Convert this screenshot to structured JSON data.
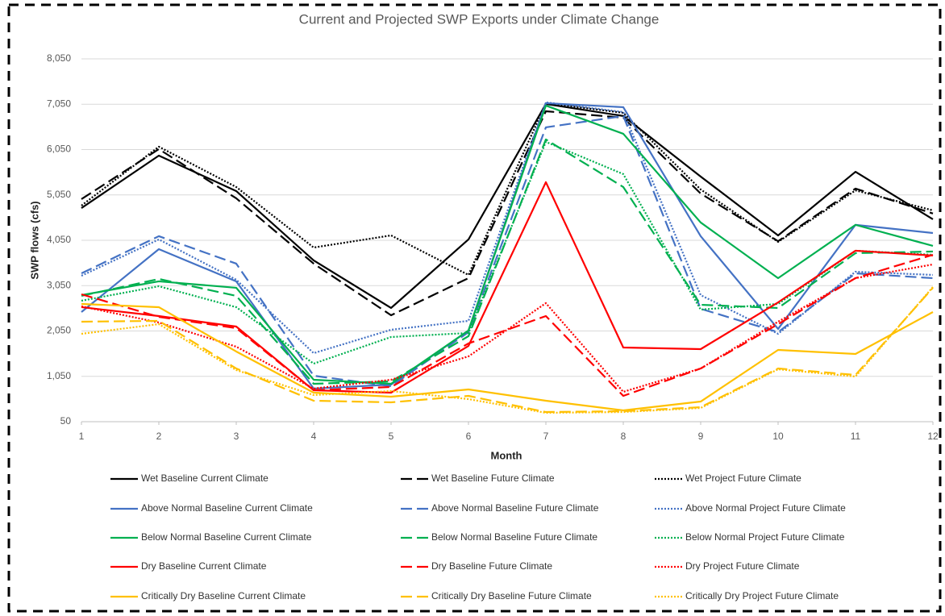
{
  "chart_data": {
    "type": "line",
    "title": "Current and Projected SWP Exports under Climate Change",
    "x_label": "Month",
    "y_label": "SWP flows (cfs)",
    "x": [
      1,
      2,
      3,
      4,
      5,
      6,
      7,
      8,
      9,
      10,
      11,
      12
    ],
    "xlim": [
      1,
      12
    ],
    "xticks": [
      1,
      2,
      3,
      4,
      5,
      6,
      7,
      8,
      9,
      10,
      11,
      12
    ],
    "ylim": [
      50,
      8050
    ],
    "yticks": [
      50,
      {
        "value": 1050,
        "label": "1,050"
      },
      {
        "value": 2050,
        "label": "2,050"
      },
      {
        "value": 3050,
        "label": "3,050"
      },
      {
        "value": 4050,
        "label": "4,050"
      },
      {
        "value": 5050,
        "label": "5,050"
      },
      {
        "value": 6050,
        "label": "6,050"
      },
      {
        "value": 7050,
        "label": "7,050"
      },
      {
        "value": 8050,
        "label": "8,050"
      }
    ],
    "grid": true,
    "legend": "bottom",
    "series": [
      {
        "name": "Wet Baseline Current Climate",
        "color": "#000000",
        "dash": "solid",
        "values": [
          4760,
          5917,
          5135,
          3606,
          2557,
          4068,
          7055,
          6790,
          5455,
          4157,
          5560,
          4513
        ]
      },
      {
        "name": "Wet Baseline Future Climate",
        "color": "#000000",
        "dash": "dashed",
        "values": [
          4957,
          6060,
          4975,
          3535,
          2397,
          3215,
          6895,
          6753,
          5080,
          4030,
          5190,
          4640
        ]
      },
      {
        "name": "Wet Project Future Climate",
        "color": "#000000",
        "dash": "dotted",
        "values": [
          4815,
          6113,
          5224,
          3890,
          4157,
          3286,
          7073,
          6860,
          5170,
          4015,
          5150,
          4710
        ]
      },
      {
        "name": "Above Normal Baseline Current Climate",
        "color": "#4472c4",
        "dash": "solid",
        "values": [
          2468,
          3855,
          3144,
          780,
          868,
          2060,
          7073,
          6984,
          4140,
          2095,
          4390,
          4210
        ]
      },
      {
        "name": "Above Normal Baseline Future Climate",
        "color": "#4472c4",
        "dash": "dashed",
        "values": [
          3321,
          4140,
          3535,
          1063,
          832,
          2024,
          6540,
          6790,
          2539,
          2024,
          3321,
          3215
        ]
      },
      {
        "name": "Above Normal Project Future Climate",
        "color": "#4472c4",
        "dash": "dotted",
        "values": [
          3268,
          4068,
          3180,
          1561,
          2077,
          2273,
          7090,
          6878,
          2841,
          1988,
          3357,
          3286
        ]
      },
      {
        "name": "Below Normal Baseline Current Climate",
        "color": "#00b050",
        "dash": "solid",
        "values": [
          2841,
          3144,
          3002,
          975,
          886,
          2060,
          7020,
          6398,
          4442,
          3215,
          4390,
          3926
        ]
      },
      {
        "name": "Below Normal Baseline Future Climate",
        "color": "#00b050",
        "dash": "dashed",
        "values": [
          2824,
          3197,
          2824,
          886,
          939,
          1935,
          6273,
          5224,
          2628,
          2557,
          3766,
          3802
        ]
      },
      {
        "name": "Below Normal Project Future Climate",
        "color": "#00b050",
        "dash": "dotted",
        "values": [
          2717,
          3037,
          2575,
          1330,
          1917,
          2006,
          6220,
          5509,
          2521,
          2646,
          3820,
          3730
        ]
      },
      {
        "name": "Dry Baseline Current Climate",
        "color": "#ff0000",
        "dash": "solid",
        "values": [
          2575,
          2379,
          2148,
          743,
          690,
          1721,
          5331,
          1686,
          1650,
          2681,
          3820,
          3713
        ]
      },
      {
        "name": "Dry Baseline Future Climate",
        "color": "#ff0000",
        "dash": "dashed",
        "values": [
          2859,
          2361,
          2113,
          743,
          815,
          1775,
          2379,
          619,
          1223,
          2201,
          3215,
          3730
        ]
      },
      {
        "name": "Dry Project Future Climate",
        "color": "#ff0000",
        "dash": "dotted",
        "values": [
          2593,
          2237,
          1704,
          780,
          975,
          1490,
          2664,
          708,
          1223,
          2255,
          3215,
          3517
        ]
      },
      {
        "name": "Critically Dry Baseline Current Climate",
        "color": "#ffc000",
        "dash": "solid",
        "values": [
          2646,
          2575,
          1597,
          690,
          601,
          761,
          512,
          299,
          494,
          1632,
          1543,
          2468
        ]
      },
      {
        "name": "Critically Dry Baseline Future Climate",
        "color": "#ffc000",
        "dash": "dashed",
        "values": [
          2255,
          2273,
          1223,
          512,
          477,
          619,
          263,
          281,
          370,
          1223,
          1081,
          3002
        ]
      },
      {
        "name": "Critically Dry Project Future Climate",
        "color": "#ffc000",
        "dash": "dotted",
        "values": [
          1988,
          2201,
          1188,
          637,
          726,
          548,
          246,
          263,
          352,
          1206,
          1046,
          3020
        ]
      }
    ]
  }
}
